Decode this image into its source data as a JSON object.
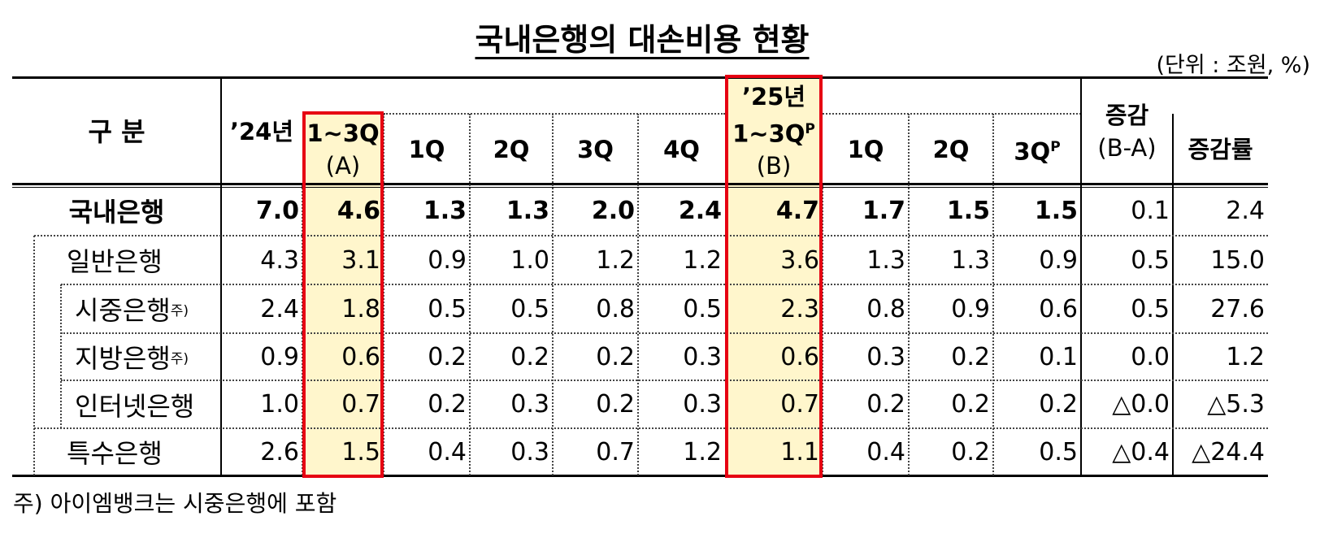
{
  "title": "국내은행의 대손비용 현황",
  "unit": "(단위 : 조원, %)",
  "header": {
    "category": "구 분",
    "columns": [
      {
        "lines": [
          {
            "text": "’24년"
          }
        ]
      },
      {
        "lines": [
          {
            "text": "1~3Q"
          },
          {
            "text": "(A)"
          }
        ]
      },
      {
        "lines": [
          {
            "text": "1Q"
          }
        ]
      },
      {
        "lines": [
          {
            "text": "2Q"
          }
        ]
      },
      {
        "lines": [
          {
            "text": "3Q"
          }
        ]
      },
      {
        "lines": [
          {
            "text": "4Q"
          }
        ]
      },
      {
        "lines": [
          {
            "text": "’25년"
          },
          {
            "text": "1~3Q",
            "sup": "P"
          },
          {
            "text": "(B)"
          }
        ]
      },
      {
        "lines": [
          {
            "text": "1Q"
          }
        ]
      },
      {
        "lines": [
          {
            "text": "2Q"
          }
        ]
      },
      {
        "lines": [
          {
            "text": "3Q",
            "sup": "P"
          }
        ]
      },
      {
        "lines": [
          {
            "text": "증감"
          },
          {
            "text": "(B-A)"
          }
        ]
      },
      {
        "lines": [
          {
            "text": "증감률"
          }
        ]
      }
    ]
  },
  "rows": [
    {
      "label": "국내은행",
      "values": [
        "7.0",
        "4.6",
        "1.3",
        "1.3",
        "2.0",
        "2.4",
        "4.7",
        "1.7",
        "1.5",
        "1.5",
        "0.1",
        "2.4"
      ]
    },
    {
      "label": "일반은행",
      "values": [
        "4.3",
        "3.1",
        "0.9",
        "1.0",
        "1.2",
        "1.2",
        "3.6",
        "1.3",
        "1.3",
        "0.9",
        "0.5",
        "15.0"
      ]
    },
    {
      "label": "시중은행",
      "note": "주)",
      "values": [
        "2.4",
        "1.8",
        "0.5",
        "0.5",
        "0.8",
        "0.5",
        "2.3",
        "0.8",
        "0.9",
        "0.6",
        "0.5",
        "27.6"
      ]
    },
    {
      "label": "지방은행",
      "note": "주)",
      "values": [
        "0.9",
        "0.6",
        "0.2",
        "0.2",
        "0.2",
        "0.3",
        "0.6",
        "0.3",
        "0.2",
        "0.1",
        "0.0",
        "1.2"
      ]
    },
    {
      "label": "인터넷은행",
      "values": [
        "1.0",
        "0.7",
        "0.2",
        "0.3",
        "0.2",
        "0.3",
        "0.7",
        "0.2",
        "0.2",
        "0.2",
        "△0.0",
        "△5.3"
      ]
    },
    {
      "label": "특수은행",
      "values": [
        "2.6",
        "1.5",
        "0.4",
        "0.3",
        "0.7",
        "1.2",
        "1.1",
        "0.4",
        "0.2",
        "0.5",
        "△0.4",
        "△24.4"
      ]
    }
  ],
  "footnote": "주) 아이엠뱅크는 시중은행에 포함"
}
